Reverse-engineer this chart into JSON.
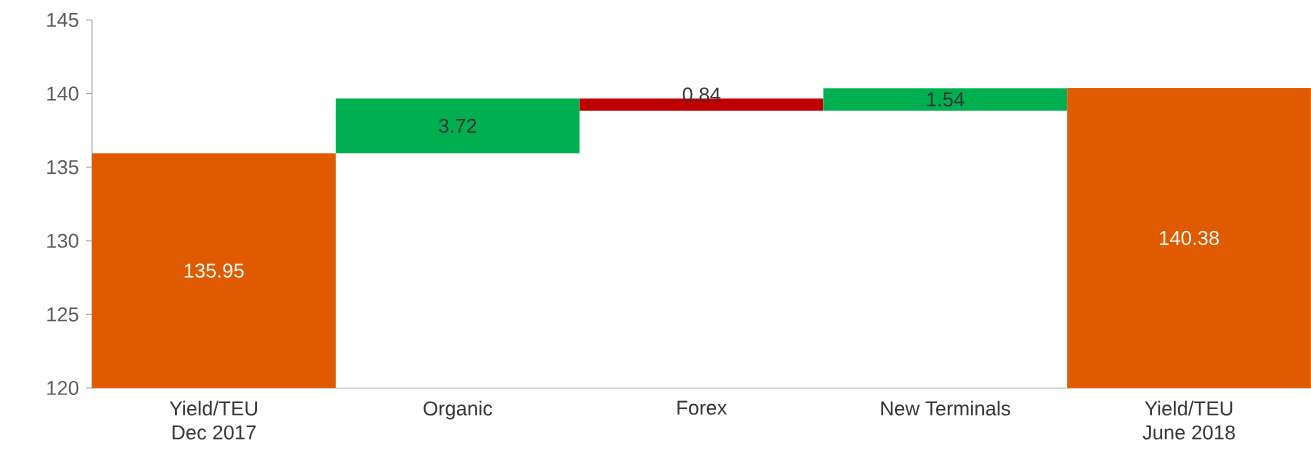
{
  "chart_data": {
    "type": "bar",
    "categories": [
      "Yield/TEU\nDec 2017",
      "Organic",
      "Forex",
      "New Terminals",
      "Yield/TEU\nJune 2018"
    ],
    "base": [
      120,
      135.95,
      139.67,
      138.83,
      120
    ],
    "values": [
      15.95,
      3.72,
      -0.84,
      1.54,
      20.38
    ],
    "value_labels": [
      "135.95",
      "3.72",
      "0.84",
      "1.54",
      "140.38"
    ],
    "colors": [
      "#e05a00",
      "#00b050",
      "#c00000",
      "#00b050",
      "#e05a00"
    ],
    "ylim": [
      120,
      145
    ],
    "yticks": [
      120,
      125,
      130,
      135,
      140,
      145
    ],
    "grid": false
  }
}
